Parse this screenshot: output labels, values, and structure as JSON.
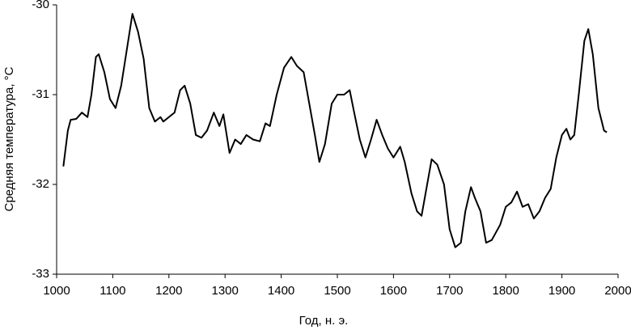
{
  "chart_data": {
    "type": "line",
    "xlabel": "Год, н. э.",
    "ylabel": "Средняя температура, °С",
    "xlim": [
      1000,
      2000
    ],
    "xticks": [
      1000,
      1100,
      1200,
      1300,
      1400,
      1500,
      1600,
      1700,
      1800,
      1900,
      2000
    ],
    "ylim": [
      -33,
      -30
    ],
    "yticks": [
      -30,
      -31,
      -32,
      -33
    ],
    "grid": false,
    "series": [
      {
        "color": "#000000",
        "x": [
          1012,
          1020,
          1025,
          1035,
          1045,
          1055,
          1062,
          1070,
          1075,
          1085,
          1095,
          1105,
          1115,
          1125,
          1135,
          1145,
          1155,
          1165,
          1175,
          1185,
          1190,
          1200,
          1210,
          1220,
          1228,
          1238,
          1248,
          1258,
          1268,
          1280,
          1290,
          1297,
          1308,
          1318,
          1328,
          1338,
          1350,
          1362,
          1372,
          1380,
          1392,
          1405,
          1418,
          1428,
          1440,
          1450,
          1460,
          1468,
          1478,
          1490,
          1500,
          1512,
          1522,
          1530,
          1540,
          1550,
          1560,
          1570,
          1580,
          1590,
          1600,
          1612,
          1620,
          1632,
          1642,
          1650,
          1660,
          1668,
          1678,
          1690,
          1700,
          1710,
          1720,
          1728,
          1738,
          1745,
          1755,
          1765,
          1775,
          1790,
          1800,
          1810,
          1820,
          1830,
          1840,
          1850,
          1860,
          1870,
          1880,
          1890,
          1900,
          1908,
          1915,
          1922,
          1930,
          1940,
          1947,
          1955,
          1965,
          1975,
          1980
        ],
        "values": [
          -31.8,
          -31.4,
          -31.28,
          -31.27,
          -31.2,
          -31.25,
          -31.0,
          -30.58,
          -30.55,
          -30.75,
          -31.05,
          -31.15,
          -30.9,
          -30.5,
          -30.1,
          -30.3,
          -30.6,
          -31.15,
          -31.3,
          -31.25,
          -31.3,
          -31.25,
          -31.2,
          -30.95,
          -30.9,
          -31.1,
          -31.45,
          -31.48,
          -31.4,
          -31.2,
          -31.35,
          -31.22,
          -31.65,
          -31.5,
          -31.55,
          -31.45,
          -31.5,
          -31.52,
          -31.32,
          -31.35,
          -31.0,
          -30.7,
          -30.58,
          -30.68,
          -30.75,
          -31.1,
          -31.45,
          -31.75,
          -31.55,
          -31.1,
          -31.0,
          -31.0,
          -30.95,
          -31.2,
          -31.5,
          -31.7,
          -31.5,
          -31.28,
          -31.45,
          -31.6,
          -31.7,
          -31.58,
          -31.75,
          -32.1,
          -32.3,
          -32.35,
          -32.0,
          -31.72,
          -31.78,
          -32.0,
          -32.5,
          -32.7,
          -32.65,
          -32.3,
          -32.03,
          -32.15,
          -32.3,
          -32.65,
          -32.62,
          -32.45,
          -32.25,
          -32.2,
          -32.08,
          -32.25,
          -32.22,
          -32.38,
          -32.3,
          -32.15,
          -32.05,
          -31.7,
          -31.45,
          -31.38,
          -31.5,
          -31.45,
          -31.0,
          -30.4,
          -30.27,
          -30.55,
          -31.15,
          -31.4,
          -31.42
        ]
      }
    ]
  }
}
